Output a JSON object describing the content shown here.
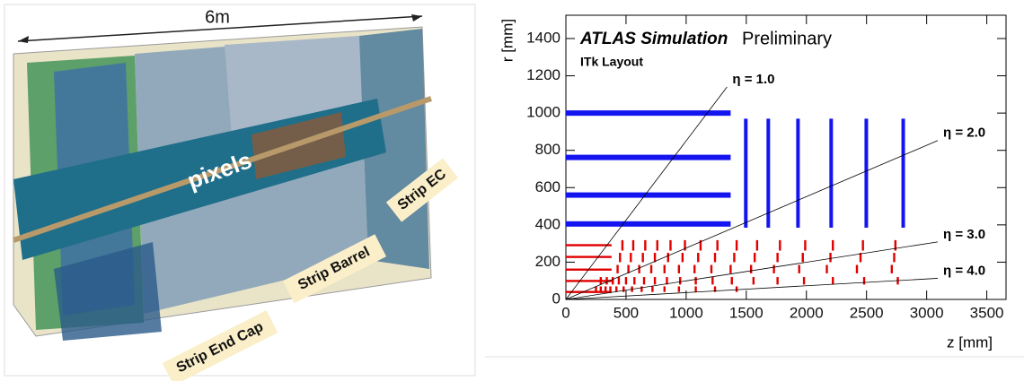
{
  "image_panel": {
    "scale_label": "6m",
    "labels": [
      "pixels",
      "Strip Barrel",
      "Strip EC",
      "Strip End Cap"
    ]
  },
  "chart_data": {
    "type": "detector-layout",
    "title": "ATLAS Simulation",
    "subtitle": "Preliminary",
    "annotation": "ITk Layout",
    "x_label": "z [mm]",
    "y_label": "r [mm]",
    "xlim": [
      0,
      3660
    ],
    "ylim": [
      0,
      1525
    ],
    "xticks": [
      0,
      500,
      1000,
      1500,
      2000,
      2500,
      3000,
      3500
    ],
    "yticks": [
      0,
      200,
      400,
      600,
      800,
      1000,
      1200,
      1400
    ],
    "strip_barrel": {
      "color": "#1414f0",
      "r": [
        405,
        560,
        762,
        1000
      ],
      "zlim": [
        0,
        1370
      ]
    },
    "strip_endcap": {
      "color": "#1414f0",
      "z": [
        1496,
        1683,
        1930,
        2206,
        2498,
        2805
      ],
      "rlim": [
        385,
        970
      ]
    },
    "pixel_barrel": {
      "color": "#e00000",
      "r": [
        40,
        99,
        160,
        228,
        291
      ],
      "zlim": [
        0,
        380
      ]
    },
    "pixel_rings": [
      {
        "color": "#e00000",
        "rlim": [
          262,
          318
        ],
        "z": [
          470,
          560,
          660,
          760,
          870,
          990,
          1120,
          1260,
          1420,
          1590,
          1780,
          1990,
          2220,
          2470,
          2740
        ]
      },
      {
        "color": "#e00000",
        "rlim": [
          200,
          250
        ],
        "z": [
          450,
          540,
          640,
          740,
          850,
          970,
          1100,
          1240,
          1400,
          1570,
          1760,
          1970,
          2200,
          2450,
          2730
        ]
      },
      {
        "color": "#e00000",
        "rlim": [
          140,
          185
        ],
        "z": [
          430,
          520,
          610,
          710,
          820,
          940,
          1070,
          1210,
          1370,
          1540,
          1730,
          1940,
          2170,
          2420,
          2710
        ]
      },
      {
        "color": "#e00000",
        "rlim": [
          80,
          120
        ],
        "z": [
          290,
          340,
          390,
          440,
          500,
          570,
          650,
          740,
          840,
          950,
          1080,
          1220,
          1380,
          1560,
          1760,
          1980,
          2220,
          2480,
          2760
        ]
      },
      {
        "color": "#e00000",
        "rlim": [
          40,
          70
        ],
        "z": [
          250,
          290,
          330,
          370,
          420,
          480,
          550,
          630,
          720,
          820,
          940,
          1080,
          1240,
          1420
        ]
      }
    ],
    "eta_lines": [
      {
        "eta": 1.0,
        "label": "η = 1.0"
      },
      {
        "eta": 2.0,
        "label": "η = 2.0"
      },
      {
        "eta": 3.0,
        "label": "η = 3.0"
      },
      {
        "eta": 4.0,
        "label": "η = 4.0"
      }
    ]
  }
}
